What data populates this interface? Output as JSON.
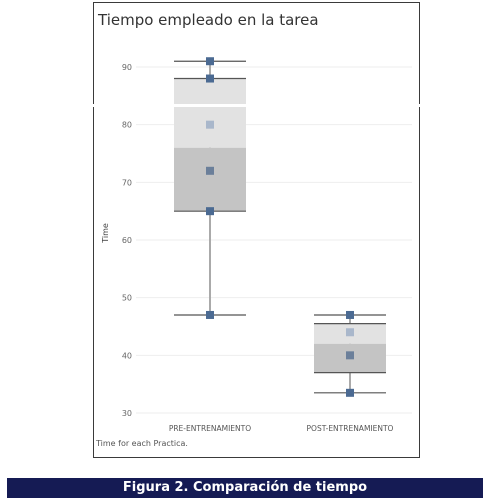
{
  "chart_data": {
    "type": "box",
    "title": "Tiempo empleado en la tarea",
    "ylabel": "Time",
    "xlabel": "",
    "ylim": [
      29,
      94
    ],
    "yticks": [
      30,
      40,
      50,
      60,
      70,
      80,
      90
    ],
    "grid": true,
    "categories": [
      "PRE-ENTRENAMIENTO",
      "POST-ENTRENAMIENTO"
    ],
    "boxes": [
      {
        "category": "PRE-ENTRENAMIENTO",
        "min": 47,
        "q1": 65,
        "median": 76,
        "q3": 88,
        "max": 91,
        "points": [
          91,
          88,
          80,
          72,
          65,
          47
        ]
      },
      {
        "category": "POST-ENTRENAMIENTO",
        "min": 33.5,
        "q1": 37,
        "median": 42,
        "q3": 45.5,
        "max": 47,
        "points": [
          47,
          44,
          40,
          33.5
        ]
      }
    ],
    "colors": {
      "upper_box": "#e2e2e2",
      "lower_box": "#c4c4c4",
      "whisker": "#aaaaaa",
      "point_dark": "#4b6a92",
      "point_light": "#a9b7cb",
      "point_mid": "#6b7f9a"
    }
  },
  "footnote": "Time for each Practica.",
  "caption": "Figura 2. Comparación de tiempo"
}
